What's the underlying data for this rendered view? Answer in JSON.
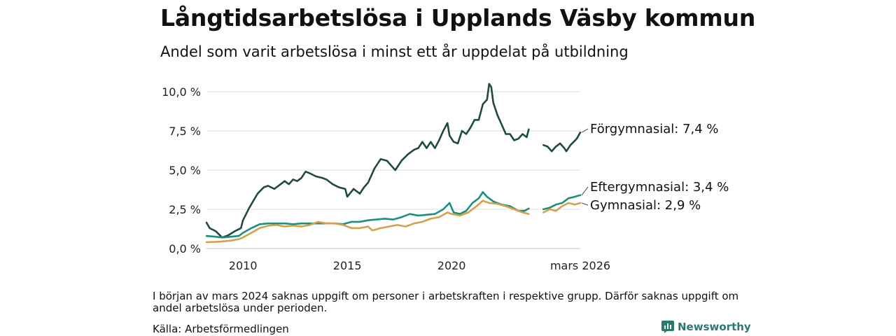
{
  "header": {
    "title": "Långtidsarbetslösa i Upplands Väsby kommun",
    "subtitle": "Andel som varit arbetslösa i minst ett år uppdelat på utbildning"
  },
  "footer": {
    "note": "I början av mars 2024 saknas uppgift om personer i arbetskraften i respektive grupp. Därför saknas uppgift om andel arbetslösa under perioden.",
    "source": "Källa: Arbetsförmedlingen",
    "brand": "Newsworthy"
  },
  "chart_data": {
    "type": "line",
    "title": "Långtidsarbetslösa i Upplands Väsby kommun",
    "subtitle": "Andel som varit arbetslösa i minst ett år uppdelat på utbildning",
    "xlabel": "",
    "ylabel": "",
    "xlim": [
      2008.25,
      2026.17
    ],
    "ylim": [
      0,
      10
    ],
    "y_ticks": [
      0,
      2.5,
      5,
      7.5,
      10
    ],
    "y_tick_labels": [
      "0,0 %",
      "2,5 %",
      "5,0 %",
      "7,5 %",
      "10,0 %"
    ],
    "x_ticks": [
      2010,
      2015,
      2020,
      2026.17
    ],
    "x_tick_labels": [
      "2010",
      "2015",
      "2020",
      "mars 2026"
    ],
    "grid": true,
    "gap": [
      2024.0,
      2024.4
    ],
    "series": [
      {
        "name": "Förgymnasial",
        "label": "Förgymnasial: 7,4 %",
        "color": "#1f4a40",
        "points": [
          [
            2008.25,
            1.65
          ],
          [
            2008.4,
            1.3
          ],
          [
            2008.7,
            1.1
          ],
          [
            2009.0,
            0.7
          ],
          [
            2009.3,
            0.85
          ],
          [
            2009.6,
            1.1
          ],
          [
            2009.9,
            1.3
          ],
          [
            2010.0,
            1.8
          ],
          [
            2010.3,
            2.6
          ],
          [
            2010.7,
            3.5
          ],
          [
            2011.0,
            3.9
          ],
          [
            2011.2,
            4.0
          ],
          [
            2011.5,
            3.8
          ],
          [
            2011.8,
            4.1
          ],
          [
            2012.0,
            4.3
          ],
          [
            2012.2,
            4.1
          ],
          [
            2012.4,
            4.4
          ],
          [
            2012.6,
            4.3
          ],
          [
            2012.8,
            4.5
          ],
          [
            2013.0,
            4.9
          ],
          [
            2013.2,
            4.8
          ],
          [
            2013.5,
            4.6
          ],
          [
            2013.8,
            4.5
          ],
          [
            2014.0,
            4.4
          ],
          [
            2014.3,
            4.1
          ],
          [
            2014.6,
            3.9
          ],
          [
            2014.9,
            3.8
          ],
          [
            2015.0,
            3.3
          ],
          [
            2015.3,
            3.8
          ],
          [
            2015.6,
            3.5
          ],
          [
            2015.8,
            3.9
          ],
          [
            2016.0,
            4.2
          ],
          [
            2016.3,
            5.1
          ],
          [
            2016.6,
            5.7
          ],
          [
            2016.9,
            5.6
          ],
          [
            2017.1,
            5.3
          ],
          [
            2017.3,
            5.0
          ],
          [
            2017.6,
            5.6
          ],
          [
            2017.9,
            6.0
          ],
          [
            2018.2,
            6.3
          ],
          [
            2018.4,
            6.4
          ],
          [
            2018.6,
            6.8
          ],
          [
            2018.8,
            6.4
          ],
          [
            2019.0,
            6.8
          ],
          [
            2019.2,
            6.4
          ],
          [
            2019.4,
            6.9
          ],
          [
            2019.6,
            7.5
          ],
          [
            2019.8,
            8.0
          ],
          [
            2019.9,
            7.2
          ],
          [
            2020.1,
            6.8
          ],
          [
            2020.3,
            6.7
          ],
          [
            2020.5,
            7.5
          ],
          [
            2020.7,
            7.3
          ],
          [
            2020.9,
            7.7
          ],
          [
            2021.1,
            8.2
          ],
          [
            2021.3,
            8.2
          ],
          [
            2021.5,
            9.2
          ],
          [
            2021.7,
            9.5
          ],
          [
            2021.8,
            10.5
          ],
          [
            2021.9,
            10.3
          ],
          [
            2022.0,
            9.3
          ],
          [
            2022.2,
            8.5
          ],
          [
            2022.4,
            7.9
          ],
          [
            2022.6,
            7.3
          ],
          [
            2022.8,
            7.3
          ],
          [
            2023.0,
            6.9
          ],
          [
            2023.2,
            7.0
          ],
          [
            2023.4,
            7.3
          ],
          [
            2023.6,
            7.1
          ],
          [
            2023.7,
            7.6
          ],
          [
            2024.4,
            6.6
          ],
          [
            2024.6,
            6.5
          ],
          [
            2024.8,
            6.2
          ],
          [
            2025.0,
            6.5
          ],
          [
            2025.2,
            6.7
          ],
          [
            2025.4,
            6.4
          ],
          [
            2025.5,
            6.2
          ],
          [
            2025.7,
            6.6
          ],
          [
            2025.85,
            6.8
          ],
          [
            2026.0,
            7.0
          ],
          [
            2026.17,
            7.4
          ]
        ]
      },
      {
        "name": "Eftergymnasial",
        "label": "Eftergymnasial: 3,4 %",
        "color": "#1a8f7d",
        "points": [
          [
            2008.25,
            0.8
          ],
          [
            2008.7,
            0.75
          ],
          [
            2009.0,
            0.7
          ],
          [
            2009.4,
            0.75
          ],
          [
            2009.8,
            0.8
          ],
          [
            2010.0,
            1.0
          ],
          [
            2010.4,
            1.3
          ],
          [
            2010.8,
            1.55
          ],
          [
            2011.2,
            1.6
          ],
          [
            2011.6,
            1.6
          ],
          [
            2012.0,
            1.6
          ],
          [
            2012.4,
            1.55
          ],
          [
            2012.8,
            1.6
          ],
          [
            2013.2,
            1.6
          ],
          [
            2013.6,
            1.6
          ],
          [
            2014.0,
            1.6
          ],
          [
            2014.4,
            1.6
          ],
          [
            2014.8,
            1.55
          ],
          [
            2015.2,
            1.7
          ],
          [
            2015.6,
            1.7
          ],
          [
            2016.0,
            1.8
          ],
          [
            2016.4,
            1.85
          ],
          [
            2016.8,
            1.9
          ],
          [
            2017.2,
            1.85
          ],
          [
            2017.6,
            2.0
          ],
          [
            2018.0,
            2.2
          ],
          [
            2018.4,
            2.1
          ],
          [
            2018.8,
            2.15
          ],
          [
            2019.2,
            2.2
          ],
          [
            2019.6,
            2.5
          ],
          [
            2019.9,
            2.9
          ],
          [
            2020.1,
            2.3
          ],
          [
            2020.4,
            2.2
          ],
          [
            2020.7,
            2.4
          ],
          [
            2021.0,
            2.9
          ],
          [
            2021.3,
            3.2
          ],
          [
            2021.5,
            3.6
          ],
          [
            2021.7,
            3.3
          ],
          [
            2022.0,
            3.0
          ],
          [
            2022.4,
            2.8
          ],
          [
            2022.8,
            2.7
          ],
          [
            2023.2,
            2.4
          ],
          [
            2023.5,
            2.4
          ],
          [
            2023.7,
            2.55
          ],
          [
            2024.4,
            2.5
          ],
          [
            2024.7,
            2.6
          ],
          [
            2025.0,
            2.8
          ],
          [
            2025.3,
            2.9
          ],
          [
            2025.6,
            3.2
          ],
          [
            2025.9,
            3.3
          ],
          [
            2026.17,
            3.4
          ]
        ]
      },
      {
        "name": "Gymnasial",
        "label": "Gymnasial: 2,9 %",
        "color": "#d4a04a",
        "points": [
          [
            2008.25,
            0.4
          ],
          [
            2008.7,
            0.42
          ],
          [
            2009.0,
            0.45
          ],
          [
            2009.4,
            0.5
          ],
          [
            2009.8,
            0.6
          ],
          [
            2010.0,
            0.7
          ],
          [
            2010.4,
            1.0
          ],
          [
            2010.8,
            1.3
          ],
          [
            2011.2,
            1.45
          ],
          [
            2011.6,
            1.5
          ],
          [
            2012.0,
            1.4
          ],
          [
            2012.4,
            1.45
          ],
          [
            2012.8,
            1.4
          ],
          [
            2013.2,
            1.5
          ],
          [
            2013.6,
            1.7
          ],
          [
            2014.0,
            1.6
          ],
          [
            2014.4,
            1.6
          ],
          [
            2014.8,
            1.5
          ],
          [
            2015.2,
            1.3
          ],
          [
            2015.6,
            1.3
          ],
          [
            2016.0,
            1.4
          ],
          [
            2016.2,
            1.15
          ],
          [
            2016.6,
            1.3
          ],
          [
            2017.0,
            1.4
          ],
          [
            2017.4,
            1.5
          ],
          [
            2017.8,
            1.4
          ],
          [
            2018.2,
            1.6
          ],
          [
            2018.6,
            1.7
          ],
          [
            2019.0,
            1.9
          ],
          [
            2019.4,
            2.0
          ],
          [
            2019.8,
            2.3
          ],
          [
            2020.0,
            2.2
          ],
          [
            2020.4,
            2.1
          ],
          [
            2020.8,
            2.3
          ],
          [
            2021.2,
            2.7
          ],
          [
            2021.5,
            3.05
          ],
          [
            2021.8,
            2.9
          ],
          [
            2022.2,
            2.85
          ],
          [
            2022.6,
            2.7
          ],
          [
            2023.0,
            2.5
          ],
          [
            2023.4,
            2.3
          ],
          [
            2023.7,
            2.2
          ],
          [
            2024.4,
            2.3
          ],
          [
            2024.7,
            2.5
          ],
          [
            2025.0,
            2.4
          ],
          [
            2025.3,
            2.7
          ],
          [
            2025.6,
            2.9
          ],
          [
            2025.9,
            2.8
          ],
          [
            2026.17,
            2.9
          ]
        ]
      }
    ]
  }
}
